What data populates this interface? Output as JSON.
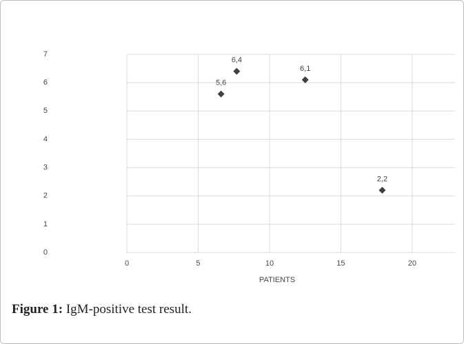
{
  "chart_data": {
    "type": "scatter",
    "x_label": "PATIENTS",
    "x": [
      6.6,
      7.7,
      12.5,
      17.9
    ],
    "series": [
      {
        "color": "#404040",
        "values": [
          5.6,
          6.4,
          6.1,
          2.2
        ],
        "value_labels": [
          "5,6",
          "6,4",
          "6,1",
          "2,2"
        ]
      }
    ],
    "xlim": [
      0,
      23
    ],
    "xticks": [
      0,
      5,
      10,
      15,
      20
    ],
    "ylim": [
      0,
      7
    ],
    "yticks": [
      0,
      1,
      2,
      3,
      4,
      5,
      6,
      7
    ],
    "grid": true
  },
  "caption": {
    "label": "Figure 1:",
    "text": "IgM-positive test result."
  }
}
